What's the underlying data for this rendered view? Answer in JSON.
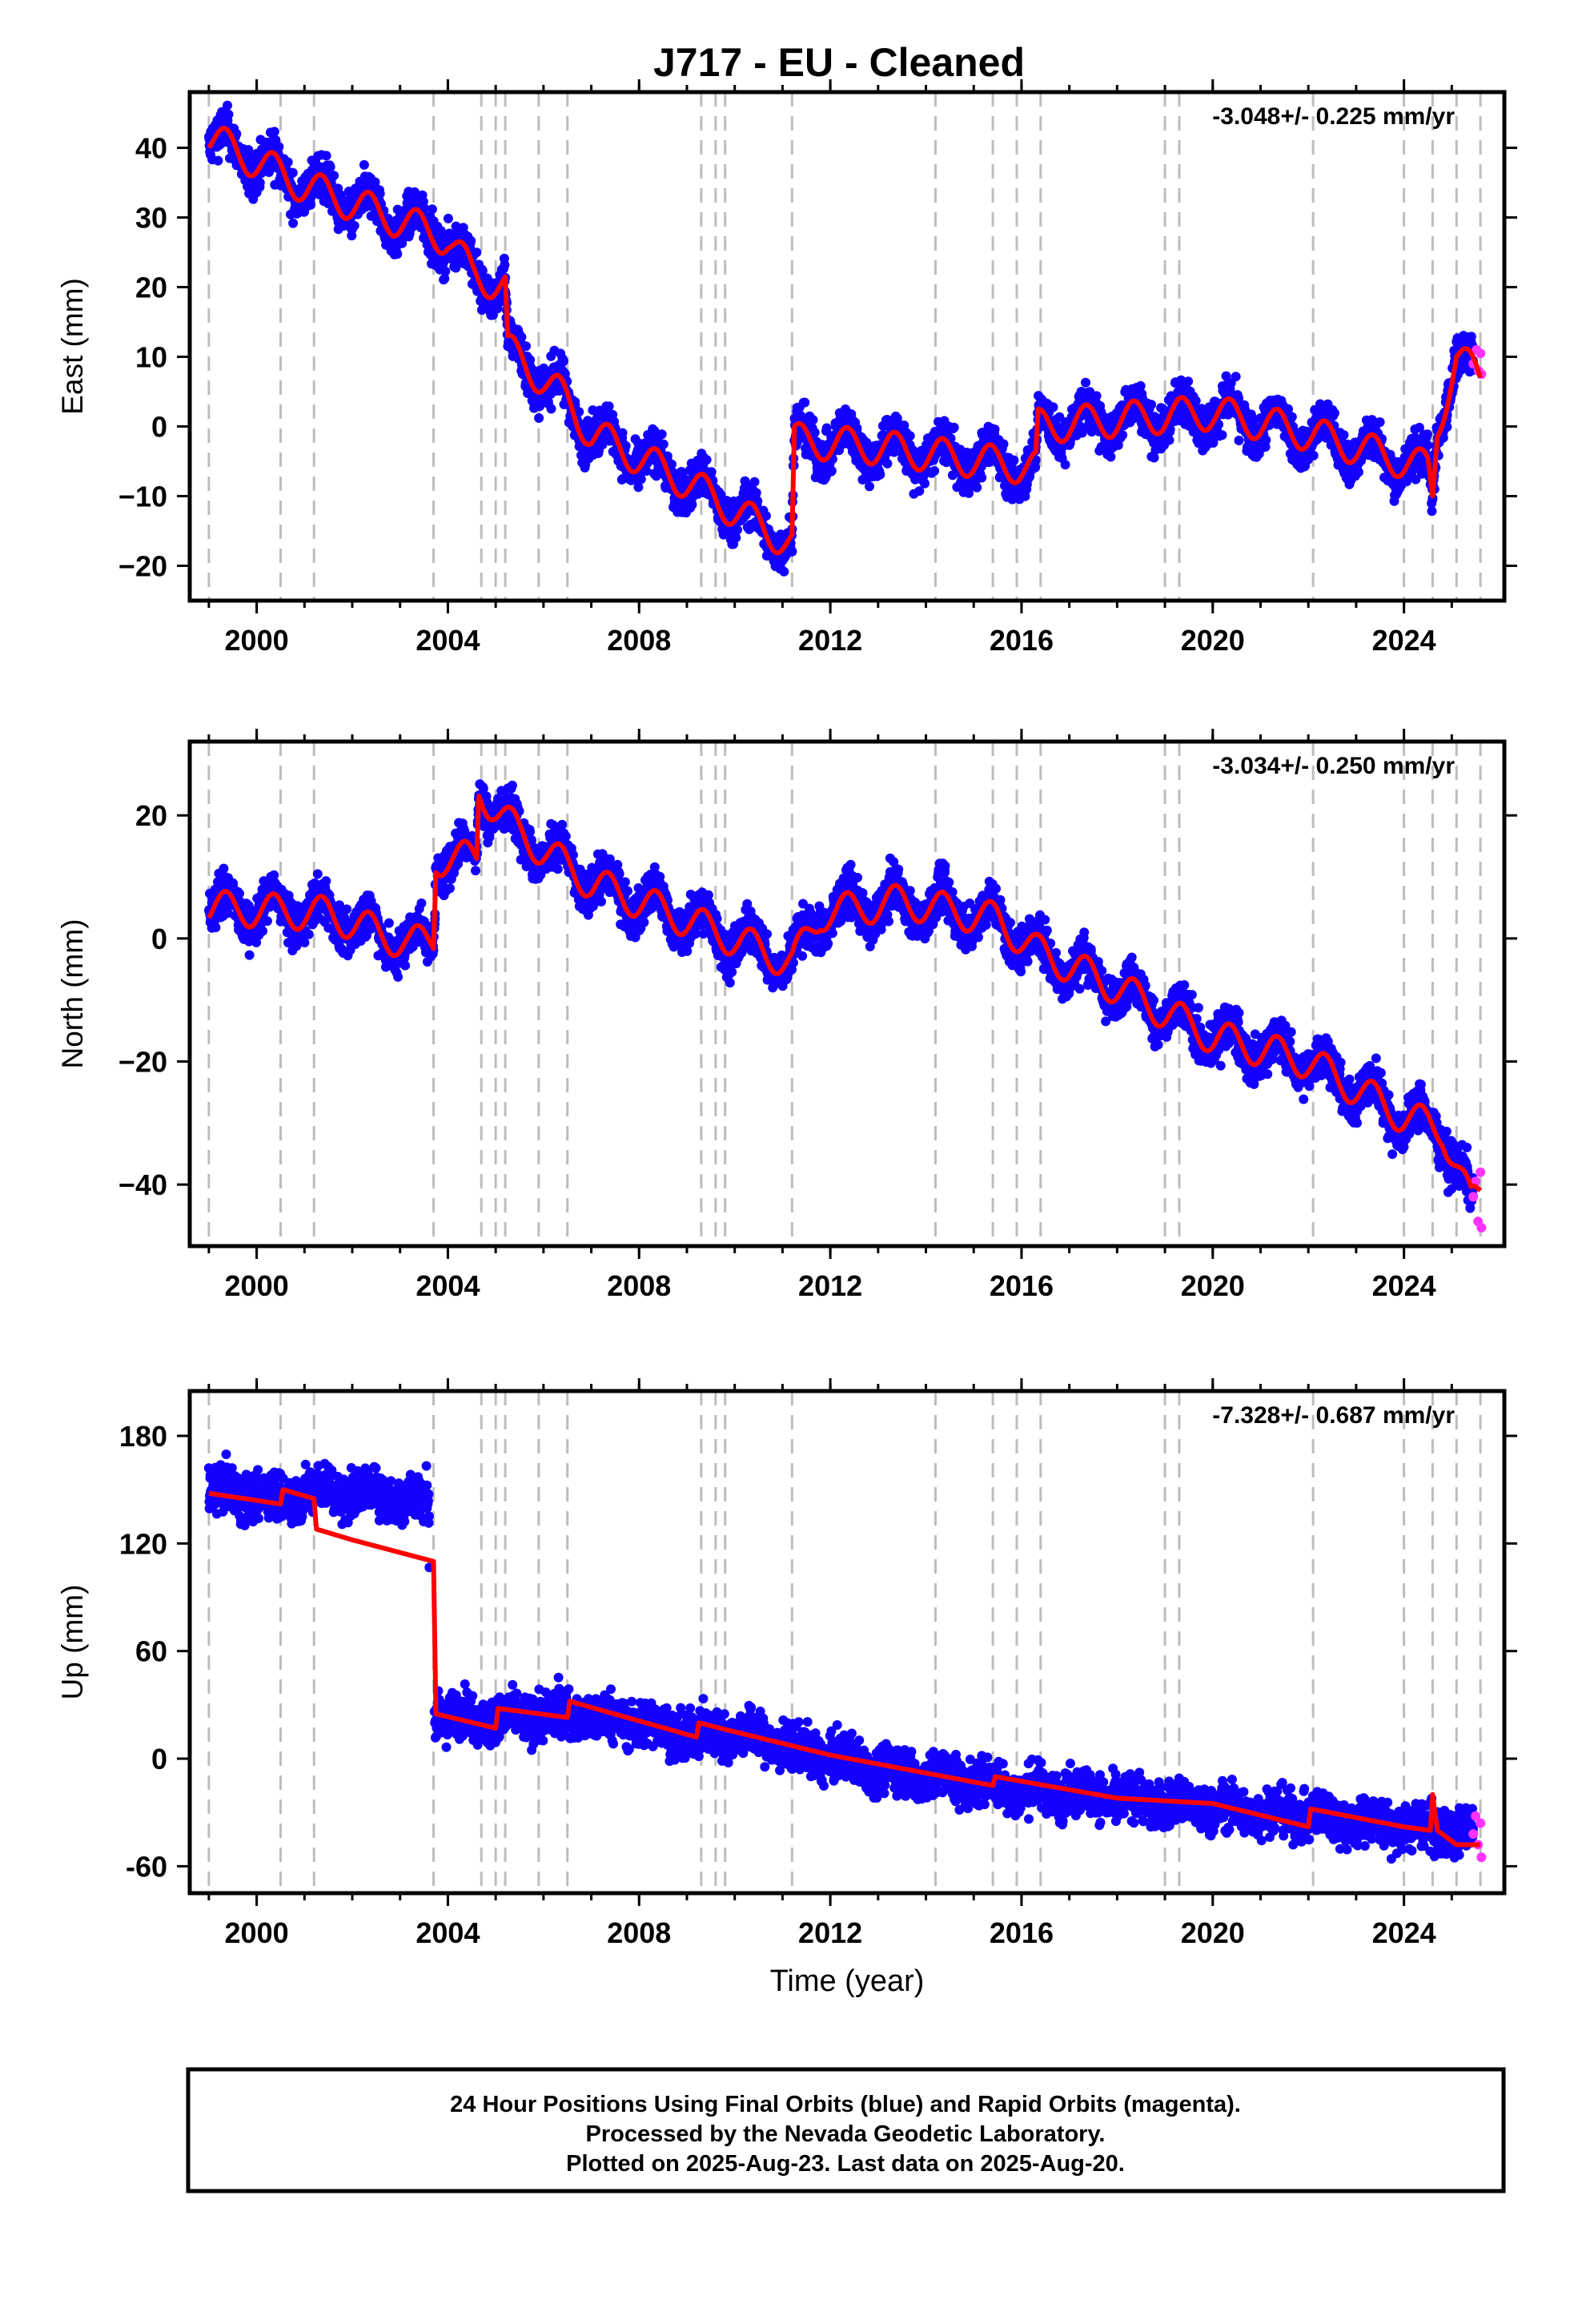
{
  "page": {
    "title": "J717  - EU - Cleaned",
    "footer": [
      "24 Hour Positions Using Final Orbits (blue) and Rapid Orbits (magenta).",
      "Processed by the Nevada Geodetic Laboratory.",
      "Plotted on 2025-Aug-23. Last data on 2025-Aug-20."
    ]
  },
  "chart_data": [
    {
      "type": "scatter",
      "panel": "east",
      "ylabel": "East (mm)",
      "xlabel": "",
      "rate_annotation": "-3.048+/- 0.225 mm/yr",
      "xlim": [
        1998.6,
        2026.1
      ],
      "ylim": [
        -25,
        48
      ],
      "xticks": [
        2000,
        2004,
        2008,
        2012,
        2016,
        2020,
        2024
      ],
      "xtick_labels": [
        "2000",
        "2004",
        "2008",
        "2012",
        "2016",
        "2020",
        "2024"
      ],
      "yticks": [
        -20,
        -10,
        0,
        10,
        20,
        30,
        40
      ],
      "ytick_labels": [
        "−20",
        "−10",
        "0",
        "10",
        "20",
        "30",
        "40"
      ],
      "series": [
        {
          "role": "final-orbits",
          "color": "#1400ff",
          "trend": [
            [
              1999.0,
              41.5
            ],
            [
              2001.0,
              34.5
            ],
            [
              2004.0,
              27.0
            ],
            [
              2004.5,
              22.0
            ],
            [
              2005.2,
              20.0
            ],
            [
              2005.25,
              11.0
            ],
            [
              2006.3,
              5.0
            ],
            [
              2007.0,
              -1.0
            ],
            [
              2009.0,
              -8.0
            ],
            [
              2011.2,
              -17.0
            ],
            [
              2011.25,
              -2.0
            ],
            [
              2013.0,
              -3.0
            ],
            [
              2016.3,
              -6.0
            ],
            [
              2016.35,
              0.0
            ],
            [
              2018.0,
              1.0
            ],
            [
              2020.0,
              2.0
            ],
            [
              2022.0,
              -1.0
            ],
            [
              2024.5,
              -6.0
            ],
            [
              2024.6,
              -10.0
            ],
            [
              2024.7,
              0.0
            ],
            [
              2025.1,
              10.0
            ],
            [
              2025.6,
              7.0
            ]
          ],
          "amplitude": 2.5,
          "scatter": 2.2
        },
        {
          "role": "rapid-orbits",
          "color": "#ff33ff",
          "values": [
            [
              2025.45,
              9.0
            ],
            [
              2025.52,
              11.0
            ],
            [
              2025.56,
              8.0
            ],
            [
              2025.6,
              10.5
            ],
            [
              2025.62,
              7.5
            ]
          ]
        },
        {
          "role": "model-fit",
          "color": "#ff0000",
          "trend": [
            [
              1999.0,
              41.5
            ],
            [
              2001.0,
              34.5
            ],
            [
              2004.0,
              27.0
            ],
            [
              2004.5,
              22.0
            ],
            [
              2005.2,
              20.0
            ],
            [
              2005.25,
              11.0
            ],
            [
              2006.3,
              5.0
            ],
            [
              2007.0,
              -1.0
            ],
            [
              2009.0,
              -8.0
            ],
            [
              2011.2,
              -17.0
            ],
            [
              2011.25,
              -2.0
            ],
            [
              2013.0,
              -3.0
            ],
            [
              2016.3,
              -6.0
            ],
            [
              2016.35,
              0.0
            ],
            [
              2018.0,
              1.0
            ],
            [
              2020.0,
              2.0
            ],
            [
              2022.0,
              -1.0
            ],
            [
              2024.5,
              -6.0
            ],
            [
              2024.6,
              -10.0
            ],
            [
              2024.7,
              0.0
            ],
            [
              2025.1,
              10.0
            ],
            [
              2025.6,
              7.0
            ]
          ],
          "amplitude": 2.5
        }
      ]
    },
    {
      "type": "scatter",
      "panel": "north",
      "ylabel": "North (mm)",
      "xlabel": "",
      "rate_annotation": "-3.034+/- 0.250 mm/yr",
      "xlim": [
        1998.6,
        2026.1
      ],
      "ylim": [
        -50,
        32
      ],
      "xticks": [
        2000,
        2004,
        2008,
        2012,
        2016,
        2020,
        2024
      ],
      "xtick_labels": [
        "2000",
        "2004",
        "2008",
        "2012",
        "2016",
        "2020",
        "2024"
      ],
      "yticks": [
        -40,
        -20,
        0,
        20
      ],
      "ytick_labels": [
        "−40",
        "−20",
        "0",
        "20"
      ],
      "series": [
        {
          "role": "final-orbits",
          "color": "#1400ff",
          "trend": [
            [
              1999.0,
              5.0
            ],
            [
              2001.5,
              4.0
            ],
            [
              2003.2,
              -1.0
            ],
            [
              2003.7,
              0.0
            ],
            [
              2003.75,
              13.0
            ],
            [
              2004.6,
              13.0
            ],
            [
              2004.65,
              24.0
            ],
            [
              2005.5,
              17.0
            ],
            [
              2007.0,
              9.0
            ],
            [
              2009.0,
              3.0
            ],
            [
              2011.2,
              -4.0
            ],
            [
              2011.8,
              4.0
            ],
            [
              2013.5,
              6.0
            ],
            [
              2015.5,
              3.0
            ],
            [
              2016.3,
              -2.0
            ],
            [
              2018.0,
              -8.0
            ],
            [
              2020.0,
              -16.0
            ],
            [
              2022.0,
              -20.0
            ],
            [
              2024.0,
              -29.0
            ],
            [
              2024.8,
              -31.0
            ],
            [
              2025.4,
              -43.0
            ],
            [
              2025.6,
              -41.0
            ]
          ],
          "amplitude": 2.8,
          "scatter": 2.5
        },
        {
          "role": "rapid-orbits",
          "color": "#ff33ff",
          "values": [
            [
              2025.45,
              -42.0
            ],
            [
              2025.5,
              -39.5
            ],
            [
              2025.55,
              -46.0
            ],
            [
              2025.6,
              -38.0
            ],
            [
              2025.62,
              -47.0
            ]
          ]
        },
        {
          "role": "model-fit",
          "color": "#ff0000",
          "trend": [
            [
              1999.0,
              5.0
            ],
            [
              2001.5,
              4.0
            ],
            [
              2003.2,
              -1.0
            ],
            [
              2003.7,
              0.0
            ],
            [
              2003.75,
              13.0
            ],
            [
              2004.6,
              13.0
            ],
            [
              2004.65,
              24.0
            ],
            [
              2005.5,
              17.0
            ],
            [
              2007.0,
              9.0
            ],
            [
              2009.0,
              3.0
            ],
            [
              2011.2,
              -4.0
            ],
            [
              2011.8,
              4.0
            ],
            [
              2013.5,
              6.0
            ],
            [
              2015.5,
              3.0
            ],
            [
              2016.3,
              -2.0
            ],
            [
              2018.0,
              -8.0
            ],
            [
              2020.0,
              -16.0
            ],
            [
              2022.0,
              -20.0
            ],
            [
              2024.0,
              -29.0
            ],
            [
              2024.8,
              -31.0
            ],
            [
              2025.4,
              -43.0
            ],
            [
              2025.6,
              -41.0
            ]
          ],
          "amplitude": 2.8
        }
      ]
    },
    {
      "type": "scatter",
      "panel": "up",
      "ylabel": "Up (mm)",
      "xlabel": "Time (year)",
      "rate_annotation": "-7.328+/- 0.687 mm/yr",
      "xlim": [
        1998.6,
        2026.1
      ],
      "ylim": [
        -75,
        205
      ],
      "xticks": [
        2000,
        2004,
        2008,
        2012,
        2016,
        2020,
        2024
      ],
      "xtick_labels": [
        "2000",
        "2004",
        "2008",
        "2012",
        "2016",
        "2020",
        "2024"
      ],
      "yticks": [
        -60,
        0,
        60,
        120,
        180
      ],
      "ytick_labels": [
        "-60",
        "0",
        "60",
        "120",
        "180"
      ],
      "series": [
        {
          "role": "final-orbits",
          "color": "#1400ff",
          "trend": [
            [
              1999.0,
              150.0
            ],
            [
              2000.5,
              145.0
            ],
            [
              2001.2,
              150.0
            ],
            [
              2003.6,
              145.0
            ],
            [
              2003.65,
              25.0
            ],
            [
              2005.0,
              22.0
            ],
            [
              2006.5,
              25.0
            ],
            [
              2008.0,
              20.0
            ],
            [
              2009.2,
              12.0
            ],
            [
              2010.0,
              15.0
            ],
            [
              2012.0,
              0.0
            ],
            [
              2014.0,
              -10.0
            ],
            [
              2016.0,
              -17.0
            ],
            [
              2018.0,
              -22.0
            ],
            [
              2020.0,
              -28.0
            ],
            [
              2022.0,
              -32.0
            ],
            [
              2024.0,
              -38.0
            ],
            [
              2025.6,
              -42.0
            ]
          ],
          "amplitude": 3.0,
          "scatter": 9.0
        },
        {
          "role": "rapid-orbits",
          "color": "#ff33ff",
          "values": [
            [
              2025.45,
              -42.0
            ],
            [
              2025.5,
              -32.0
            ],
            [
              2025.55,
              -48.0
            ],
            [
              2025.6,
              -36.0
            ],
            [
              2025.62,
              -55.0
            ]
          ]
        },
        {
          "role": "model-fit",
          "color": "#ff0000",
          "trend": [
            [
              1999.0,
              148.0
            ],
            [
              2000.5,
              142.0
            ],
            [
              2000.55,
              150.0
            ],
            [
              2001.2,
              145.0
            ],
            [
              2001.25,
              128.0
            ],
            [
              2002.0,
              122.0
            ],
            [
              2003.7,
              110.0
            ],
            [
              2003.75,
              25.0
            ],
            [
              2005.0,
              17.0
            ],
            [
              2005.05,
              28.0
            ],
            [
              2006.5,
              23.0
            ],
            [
              2006.55,
              32.0
            ],
            [
              2009.2,
              12.0
            ],
            [
              2009.25,
              20.0
            ],
            [
              2010.0,
              15.0
            ],
            [
              2012.0,
              2.0
            ],
            [
              2014.0,
              -8.0
            ],
            [
              2015.4,
              -15.0
            ],
            [
              2015.45,
              -10.0
            ],
            [
              2018.0,
              -22.0
            ],
            [
              2020.0,
              -25.0
            ],
            [
              2022.0,
              -38.0
            ],
            [
              2022.05,
              -28.0
            ],
            [
              2024.0,
              -38.0
            ],
            [
              2024.55,
              -40.0
            ],
            [
              2024.6,
              -20.0
            ],
            [
              2024.7,
              -40.0
            ],
            [
              2025.1,
              -48.0
            ],
            [
              2025.6,
              -48.0
            ]
          ],
          "amplitude": 0
        }
      ]
    }
  ]
}
